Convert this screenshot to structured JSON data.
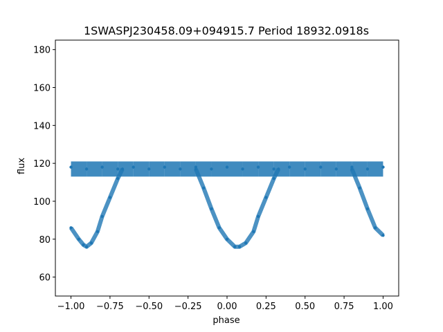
{
  "chart_data": {
    "type": "scatter",
    "title": "1SWASPJ230458.09+094915.7 Period 18932.0918s",
    "xlabel": "phase",
    "ylabel": "flux",
    "xlim": [
      -1.1,
      1.1
    ],
    "ylim": [
      50,
      185
    ],
    "x_ticks": [
      -1.0,
      -0.75,
      -0.5,
      -0.25,
      0.0,
      0.25,
      0.5,
      0.75,
      1.0
    ],
    "x_tick_labels": [
      "−1.00",
      "−0.75",
      "−0.50",
      "−0.25",
      "0.00",
      "0.25",
      "0.50",
      "0.75",
      "1.00"
    ],
    "y_ticks": [
      60,
      80,
      100,
      120,
      140,
      160,
      180
    ],
    "y_tick_labels": [
      "60",
      "80",
      "100",
      "120",
      "140",
      "160",
      "180"
    ],
    "grid": false,
    "point_color": "#1f77b4",
    "series": [
      {
        "band_points": [
          [
            -1.0,
            118
          ],
          [
            -0.9,
            117
          ],
          [
            -0.8,
            118
          ],
          [
            -0.7,
            117
          ],
          [
            -0.6,
            118
          ],
          [
            -0.5,
            117
          ],
          [
            -0.4,
            118
          ],
          [
            -0.3,
            117
          ],
          [
            -0.2,
            118
          ],
          [
            -0.1,
            117
          ],
          [
            0.0,
            118
          ],
          [
            0.1,
            117
          ],
          [
            0.2,
            118
          ],
          [
            0.3,
            117
          ],
          [
            0.4,
            118
          ],
          [
            0.5,
            117
          ],
          [
            0.6,
            118
          ],
          [
            0.7,
            117
          ],
          [
            0.8,
            118
          ],
          [
            0.9,
            117
          ],
          [
            1.0,
            118
          ]
        ],
        "eclipse_points": [
          [
            -1.0,
            86
          ],
          [
            -0.95,
            80
          ],
          [
            -0.92,
            77
          ],
          [
            -0.9,
            76
          ],
          [
            -0.87,
            78
          ],
          [
            -0.83,
            84
          ],
          [
            -0.8,
            92
          ],
          [
            -0.75,
            102
          ],
          [
            -0.7,
            112
          ],
          [
            -0.67,
            117
          ],
          [
            -0.2,
            117
          ],
          [
            -0.15,
            107
          ],
          [
            -0.1,
            96
          ],
          [
            -0.05,
            86
          ],
          [
            0.0,
            80
          ],
          [
            0.05,
            76
          ],
          [
            0.08,
            76
          ],
          [
            0.12,
            78
          ],
          [
            0.17,
            84
          ],
          [
            0.2,
            92
          ],
          [
            0.25,
            102
          ],
          [
            0.3,
            112
          ],
          [
            0.33,
            117
          ],
          [
            0.8,
            117
          ],
          [
            0.85,
            107
          ],
          [
            0.9,
            96
          ],
          [
            0.95,
            86
          ],
          [
            1.0,
            82
          ]
        ]
      }
    ]
  }
}
